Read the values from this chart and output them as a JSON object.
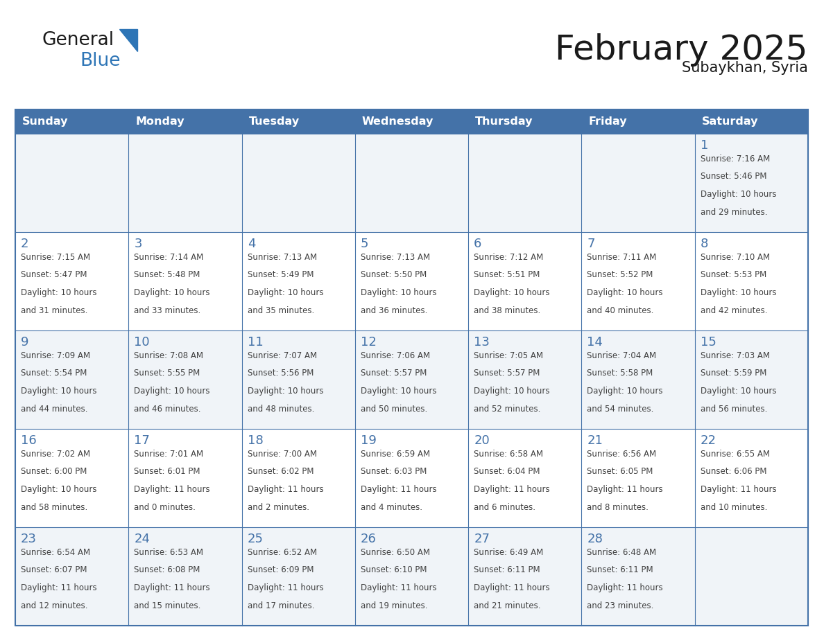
{
  "title": "February 2025",
  "subtitle": "Subaykhan, Syria",
  "days_of_week": [
    "Sunday",
    "Monday",
    "Tuesday",
    "Wednesday",
    "Thursday",
    "Friday",
    "Saturday"
  ],
  "header_bg": "#4472a8",
  "header_text": "#FFFFFF",
  "cell_bg": "#FFFFFF",
  "border_color": "#4472a8",
  "day_num_color": "#4472a8",
  "text_color": "#404040",
  "title_color": "#1A1A1A",
  "logo_general_color": "#1A1A1A",
  "logo_blue_color": "#2E75B6",
  "logo_triangle_color": "#2E75B6",
  "calendar_data": [
    [
      null,
      null,
      null,
      null,
      null,
      null,
      {
        "day": 1,
        "sunrise": "7:16 AM",
        "sunset": "5:46 PM",
        "daylight": "10 hours and 29 minutes."
      }
    ],
    [
      {
        "day": 2,
        "sunrise": "7:15 AM",
        "sunset": "5:47 PM",
        "daylight": "10 hours and 31 minutes."
      },
      {
        "day": 3,
        "sunrise": "7:14 AM",
        "sunset": "5:48 PM",
        "daylight": "10 hours and 33 minutes."
      },
      {
        "day": 4,
        "sunrise": "7:13 AM",
        "sunset": "5:49 PM",
        "daylight": "10 hours and 35 minutes."
      },
      {
        "day": 5,
        "sunrise": "7:13 AM",
        "sunset": "5:50 PM",
        "daylight": "10 hours and 36 minutes."
      },
      {
        "day": 6,
        "sunrise": "7:12 AM",
        "sunset": "5:51 PM",
        "daylight": "10 hours and 38 minutes."
      },
      {
        "day": 7,
        "sunrise": "7:11 AM",
        "sunset": "5:52 PM",
        "daylight": "10 hours and 40 minutes."
      },
      {
        "day": 8,
        "sunrise": "7:10 AM",
        "sunset": "5:53 PM",
        "daylight": "10 hours and 42 minutes."
      }
    ],
    [
      {
        "day": 9,
        "sunrise": "7:09 AM",
        "sunset": "5:54 PM",
        "daylight": "10 hours and 44 minutes."
      },
      {
        "day": 10,
        "sunrise": "7:08 AM",
        "sunset": "5:55 PM",
        "daylight": "10 hours and 46 minutes."
      },
      {
        "day": 11,
        "sunrise": "7:07 AM",
        "sunset": "5:56 PM",
        "daylight": "10 hours and 48 minutes."
      },
      {
        "day": 12,
        "sunrise": "7:06 AM",
        "sunset": "5:57 PM",
        "daylight": "10 hours and 50 minutes."
      },
      {
        "day": 13,
        "sunrise": "7:05 AM",
        "sunset": "5:57 PM",
        "daylight": "10 hours and 52 minutes."
      },
      {
        "day": 14,
        "sunrise": "7:04 AM",
        "sunset": "5:58 PM",
        "daylight": "10 hours and 54 minutes."
      },
      {
        "day": 15,
        "sunrise": "7:03 AM",
        "sunset": "5:59 PM",
        "daylight": "10 hours and 56 minutes."
      }
    ],
    [
      {
        "day": 16,
        "sunrise": "7:02 AM",
        "sunset": "6:00 PM",
        "daylight": "10 hours and 58 minutes."
      },
      {
        "day": 17,
        "sunrise": "7:01 AM",
        "sunset": "6:01 PM",
        "daylight": "11 hours and 0 minutes."
      },
      {
        "day": 18,
        "sunrise": "7:00 AM",
        "sunset": "6:02 PM",
        "daylight": "11 hours and 2 minutes."
      },
      {
        "day": 19,
        "sunrise": "6:59 AM",
        "sunset": "6:03 PM",
        "daylight": "11 hours and 4 minutes."
      },
      {
        "day": 20,
        "sunrise": "6:58 AM",
        "sunset": "6:04 PM",
        "daylight": "11 hours and 6 minutes."
      },
      {
        "day": 21,
        "sunrise": "6:56 AM",
        "sunset": "6:05 PM",
        "daylight": "11 hours and 8 minutes."
      },
      {
        "day": 22,
        "sunrise": "6:55 AM",
        "sunset": "6:06 PM",
        "daylight": "11 hours and 10 minutes."
      }
    ],
    [
      {
        "day": 23,
        "sunrise": "6:54 AM",
        "sunset": "6:07 PM",
        "daylight": "11 hours and 12 minutes."
      },
      {
        "day": 24,
        "sunrise": "6:53 AM",
        "sunset": "6:08 PM",
        "daylight": "11 hours and 15 minutes."
      },
      {
        "day": 25,
        "sunrise": "6:52 AM",
        "sunset": "6:09 PM",
        "daylight": "11 hours and 17 minutes."
      },
      {
        "day": 26,
        "sunrise": "6:50 AM",
        "sunset": "6:10 PM",
        "daylight": "11 hours and 19 minutes."
      },
      {
        "day": 27,
        "sunrise": "6:49 AM",
        "sunset": "6:11 PM",
        "daylight": "11 hours and 21 minutes."
      },
      {
        "day": 28,
        "sunrise": "6:48 AM",
        "sunset": "6:11 PM",
        "daylight": "11 hours and 23 minutes."
      },
      null
    ]
  ]
}
